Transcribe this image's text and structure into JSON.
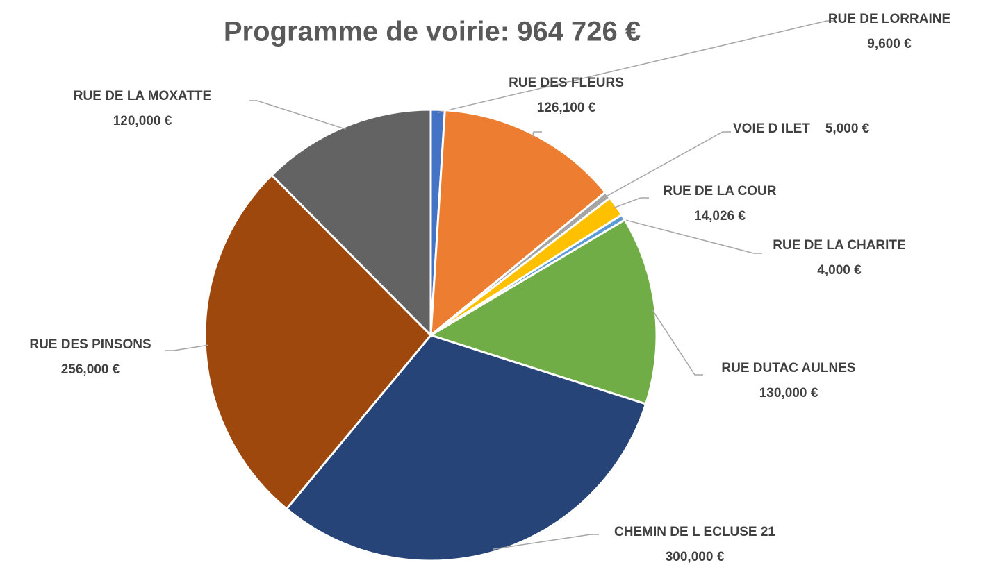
{
  "chart_data": {
    "type": "pie",
    "title": "Programme de voirie: 964 726 €",
    "categories": [
      "RUE DE LORRAINE",
      "RUE DES FLEURS",
      "VOIE D ILET",
      "RUE DE LA COUR",
      "RUE DE LA CHARITE",
      "RUE DUTAC AULNES",
      "CHEMIN DE L ECLUSE 21",
      "RUE DES PINSONS",
      "RUE DE LA MOXATTE"
    ],
    "values": [
      9600,
      126100,
      5000,
      14026,
      4000,
      130000,
      300000,
      256000,
      120000
    ],
    "value_labels": [
      "9,600 €",
      "126,100 €",
      "5,000 €",
      "14,026 €",
      "4,000 €",
      "130,000 €",
      "300,000 €",
      "256,000 €",
      "120,000 €"
    ],
    "colors": [
      "#4472c4",
      "#ed7d31",
      "#a5a5a5",
      "#ffc000",
      "#5b9bd5",
      "#70ad47",
      "#264478",
      "#9e480e",
      "#636363"
    ]
  }
}
